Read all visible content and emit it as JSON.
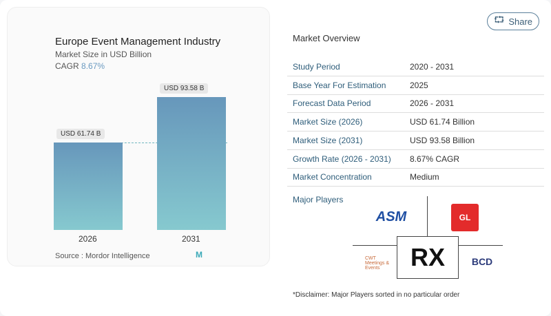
{
  "chart_data": {
    "type": "bar",
    "title": "Europe Event Management Industry",
    "subtitle": "Market Size in USD Billion",
    "cagr_label": "CAGR",
    "cagr": "8.67%",
    "categories": [
      "2026",
      "2031"
    ],
    "values": [
      61.74,
      93.58
    ],
    "value_labels": [
      "USD 61.74 B",
      "USD 93.58 B"
    ],
    "source": "Source :  Mordor Intelligence"
  },
  "share": "Share",
  "overview": {
    "title": "Market Overview",
    "rows": [
      {
        "k": "Study Period",
        "v": "2020 - 2031"
      },
      {
        "k": "Base Year For Estimation",
        "v": "2025"
      },
      {
        "k": "Forecast Data Period",
        "v": "2026 - 2031"
      },
      {
        "k": "Market Size (2026)",
        "v": "USD 61.74 Billion"
      },
      {
        "k": "Market Size (2031)",
        "v": "USD 93.58 Billion"
      },
      {
        "k": "Growth Rate (2026 - 2031)",
        "v": "8.67% CAGR"
      },
      {
        "k": "Market Concentration",
        "v": "Medium"
      }
    ]
  },
  "players": {
    "title": "Major Players",
    "logos": [
      "ASM GLOBAL",
      "GL events",
      "RX",
      "CWT Meetings & Events",
      "BCD meetings & events"
    ]
  },
  "disclaimer": "*Disclaimer: Major Players sorted in no particular order"
}
